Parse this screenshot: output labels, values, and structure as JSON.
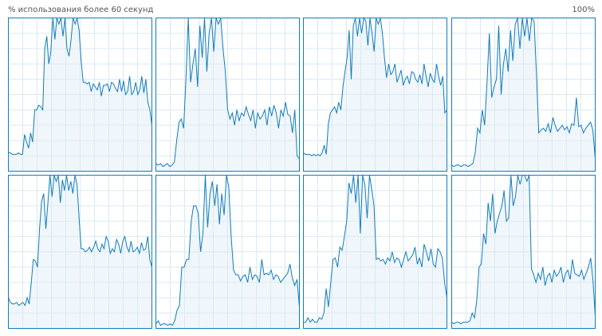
{
  "header": {
    "title": "% использования более 60 секунд",
    "max_label": "100%"
  },
  "chart_data": [
    {
      "type": "line",
      "color": "#117dbb",
      "fill": "#f1f6fa",
      "ylim": [
        0,
        100
      ],
      "grid": true,
      "values": [
        12,
        12,
        11,
        11,
        11,
        12,
        11,
        11,
        24,
        19,
        15,
        25,
        19,
        40,
        40,
        43,
        42,
        40,
        80,
        88,
        70,
        78,
        100,
        86,
        100,
        96,
        100,
        88,
        100,
        80,
        75,
        86,
        100,
        96,
        100,
        92,
        72,
        58,
        58,
        57,
        58,
        52,
        57,
        55,
        53,
        58,
        49,
        56,
        56,
        57,
        52,
        58,
        57,
        54,
        52,
        60,
        52,
        59,
        50,
        52,
        62,
        50,
        52,
        58,
        50,
        53,
        62,
        51,
        60,
        45,
        40,
        30
      ]
    },
    {
      "type": "line",
      "color": "#117dbb",
      "fill": "#f1f6fa",
      "ylim": [
        0,
        100
      ],
      "grid": true,
      "values": [
        5,
        4,
        5,
        3,
        4,
        5,
        3,
        4,
        6,
        20,
        32,
        34,
        28,
        60,
        100,
        58,
        70,
        80,
        55,
        95,
        74,
        100,
        65,
        90,
        100,
        78,
        100,
        96,
        100,
        80,
        65,
        40,
        34,
        38,
        30,
        40,
        33,
        38,
        36,
        42,
        37,
        33,
        40,
        28,
        38,
        34,
        36,
        40,
        30,
        42,
        36,
        43,
        38,
        28,
        40,
        36,
        45,
        37,
        36,
        25,
        40,
        10,
        8
      ]
    },
    {
      "type": "line",
      "color": "#117dbb",
      "fill": "#f1f6fa",
      "ylim": [
        0,
        100
      ],
      "grid": true,
      "values": [
        12,
        11,
        11,
        11,
        10,
        11,
        10,
        11,
        10,
        12,
        17,
        11,
        31,
        38,
        40,
        42,
        38,
        45,
        40,
        55,
        65,
        74,
        92,
        60,
        95,
        100,
        88,
        100,
        90,
        100,
        98,
        82,
        100,
        90,
        78,
        100,
        96,
        100,
        90,
        74,
        61,
        70,
        63,
        65,
        70,
        58,
        62,
        66,
        56,
        60,
        62,
        57,
        65,
        64,
        60,
        58,
        63,
        57,
        70,
        62,
        55,
        64,
        60,
        58,
        70,
        62,
        56,
        62,
        38,
        40
      ]
    },
    {
      "type": "line",
      "color": "#117dbb",
      "fill": "#f1f6fa",
      "ylim": [
        0,
        100
      ],
      "grid": true,
      "values": [
        4,
        3,
        4,
        4,
        3,
        4,
        4,
        3,
        4,
        5,
        12,
        28,
        25,
        40,
        30,
        58,
        90,
        48,
        55,
        60,
        95,
        50,
        70,
        80,
        65,
        92,
        72,
        96,
        100,
        80,
        100,
        88,
        100,
        85,
        100,
        98,
        65,
        25,
        27,
        28,
        26,
        31,
        25,
        35,
        30,
        26,
        28,
        30,
        27,
        29,
        25,
        31,
        30,
        48,
        29,
        30,
        25,
        28,
        30,
        32,
        27,
        8
      ]
    },
    {
      "type": "line",
      "color": "#117dbb",
      "fill": "#f1f6fa",
      "ylim": [
        0,
        100
      ],
      "grid": true,
      "values": [
        20,
        17,
        16,
        16,
        17,
        15,
        16,
        17,
        15,
        20,
        16,
        30,
        45,
        44,
        40,
        65,
        83,
        88,
        65,
        82,
        100,
        86,
        100,
        96,
        100,
        82,
        97,
        90,
        100,
        90,
        96,
        88,
        100,
        94,
        72,
        52,
        52,
        50,
        51,
        53,
        50,
        53,
        57,
        52,
        50,
        55,
        52,
        60,
        57,
        49,
        52,
        50,
        58,
        55,
        49,
        57,
        60,
        53,
        50,
        57,
        50,
        51,
        53,
        49,
        56,
        51,
        52,
        60,
        45,
        40
      ]
    },
    {
      "type": "line",
      "color": "#117dbb",
      "fill": "#f1f6fa",
      "ylim": [
        0,
        100
      ],
      "grid": true,
      "values": [
        3,
        5,
        2,
        3,
        3,
        2,
        3,
        2,
        5,
        12,
        15,
        40,
        40,
        45,
        45,
        70,
        80,
        80,
        75,
        50,
        62,
        100,
        66,
        88,
        96,
        80,
        94,
        68,
        88,
        74,
        100,
        92,
        60,
        38,
        35,
        35,
        31,
        34,
        35,
        30,
        40,
        32,
        35,
        34,
        30,
        45,
        35,
        36,
        35,
        38,
        32,
        35,
        34,
        30,
        32,
        34,
        36,
        42,
        33,
        28,
        32,
        14
      ]
    },
    {
      "type": "line",
      "color": "#117dbb",
      "fill": "#f1f6fa",
      "ylim": [
        0,
        100
      ],
      "grid": true,
      "values": [
        4,
        4,
        7,
        4,
        6,
        4,
        4,
        7,
        6,
        10,
        26,
        14,
        30,
        45,
        46,
        40,
        53,
        51,
        60,
        70,
        95,
        88,
        100,
        82,
        100,
        62,
        100,
        94,
        72,
        100,
        91,
        80,
        45,
        46,
        44,
        45,
        42,
        46,
        44,
        50,
        43,
        46,
        45,
        40,
        45,
        50,
        44,
        46,
        48,
        53,
        42,
        46,
        40,
        55,
        50,
        44,
        52,
        42,
        40,
        52,
        50,
        46,
        30,
        20
      ]
    },
    {
      "type": "line",
      "color": "#117dbb",
      "fill": "#f1f6fa",
      "ylim": [
        0,
        100
      ],
      "grid": true,
      "values": [
        4,
        3,
        4,
        4,
        3,
        4,
        4,
        4,
        5,
        10,
        7,
        18,
        40,
        42,
        62,
        55,
        82,
        70,
        88,
        62,
        70,
        75,
        80,
        90,
        70,
        72,
        100,
        80,
        86,
        100,
        94,
        100,
        100,
        96,
        100,
        39,
        35,
        30,
        36,
        32,
        40,
        28,
        34,
        36,
        30,
        38,
        34,
        36,
        40,
        30,
        36,
        38,
        32,
        45,
        36,
        35,
        34,
        38,
        32,
        36,
        40,
        46,
        32,
        8
      ]
    }
  ]
}
